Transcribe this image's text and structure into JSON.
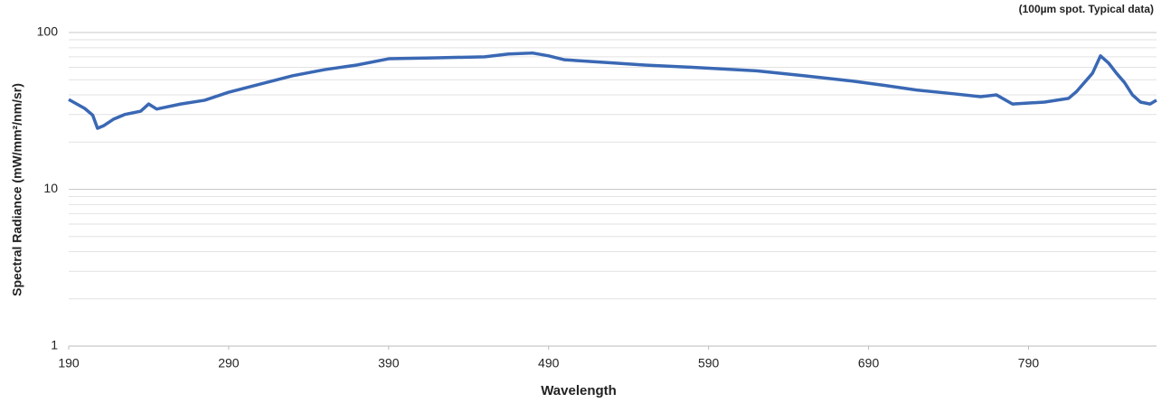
{
  "chart_data": {
    "type": "line",
    "subtitle": "(100µm spot. Typical data)",
    "x_label": "Wavelength",
    "y_label": "Spectral Radiance (mW/mm²/nm/sr)",
    "x": [
      190,
      200,
      205,
      208,
      212,
      218,
      225,
      235,
      240,
      245,
      260,
      275,
      290,
      310,
      330,
      350,
      370,
      390,
      420,
      450,
      465,
      480,
      490,
      500,
      530,
      550,
      580,
      620,
      650,
      680,
      700,
      720,
      740,
      760,
      770,
      780,
      800,
      815,
      820,
      830,
      835,
      840,
      845,
      850,
      855,
      860,
      866,
      870
    ],
    "series": [
      {
        "color": "#3a68b4",
        "values": [
          37.4,
          32.8,
          29.7,
          24.5,
          25.5,
          28,
          30,
          31.5,
          35,
          32.5,
          35,
          37,
          41.6,
          47,
          53,
          58,
          62,
          68,
          69,
          70,
          73,
          74,
          71,
          67,
          64,
          62,
          60,
          57,
          53,
          49,
          46,
          43,
          41,
          39,
          40,
          35,
          36,
          38,
          42,
          55,
          71,
          64,
          55,
          48,
          40,
          36,
          35,
          37
        ]
      }
    ],
    "xlim": [
      190,
      870
    ],
    "xticks": [
      190,
      290,
      390,
      490,
      590,
      690,
      790
    ],
    "ylim": [
      1,
      100
    ],
    "yticks": [
      1,
      10,
      100
    ],
    "log_y": true,
    "grid": true,
    "yminor": [
      2,
      3,
      4,
      5,
      6,
      7,
      8,
      9,
      20,
      30,
      40,
      50,
      60,
      70,
      80,
      90
    ]
  }
}
